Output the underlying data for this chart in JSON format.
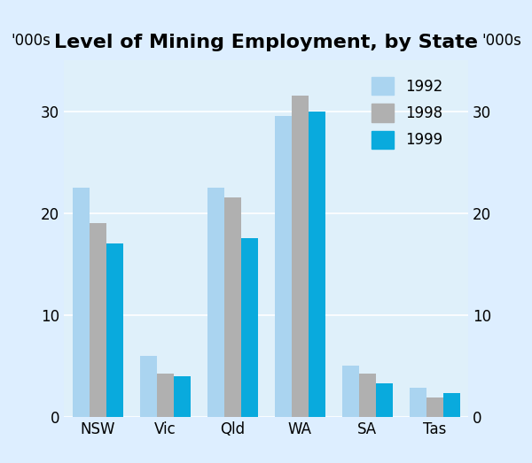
{
  "title": "Level of Mining Employment, by State",
  "ylabel": "'000s",
  "categories": [
    "NSW",
    "Vic",
    "Qld",
    "WA",
    "SA",
    "Tas"
  ],
  "series": {
    "1992": [
      22.5,
      6.0,
      22.5,
      29.5,
      5.0,
      2.8
    ],
    "1998": [
      19.0,
      4.2,
      21.5,
      31.5,
      4.2,
      1.9
    ],
    "1999": [
      17.0,
      4.0,
      17.5,
      30.0,
      3.3,
      2.3
    ]
  },
  "colors": {
    "1992": "#aad4f0",
    "1998": "#b0b0b0",
    "1999": "#09aadd"
  },
  "ylim": [
    0,
    35
  ],
  "yticks": [
    0,
    10,
    20,
    30
  ],
  "background_color": "#ddeeff",
  "plot_background_color": "#dff0fa",
  "bar_width": 0.25,
  "title_fontsize": 16,
  "tick_fontsize": 12,
  "legend_fontsize": 12
}
